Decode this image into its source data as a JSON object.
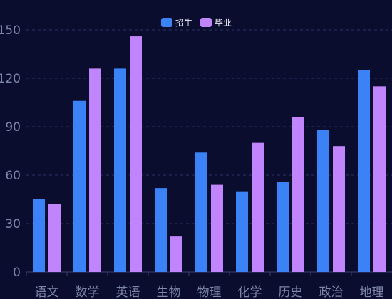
{
  "chart_data": {
    "type": "bar",
    "categories": [
      "语文",
      "数学",
      "英语",
      "生物",
      "物理",
      "化学",
      "历史",
      "政治",
      "地理"
    ],
    "series": [
      {
        "name": "招生",
        "values": [
          45,
          106,
          126,
          52,
          74,
          50,
          56,
          88,
          125
        ],
        "color": "#3b82f6"
      },
      {
        "name": "毕业",
        "values": [
          42,
          126,
          146,
          22,
          54,
          80,
          96,
          78,
          115
        ],
        "color": "#c084fc"
      }
    ],
    "title": "",
    "xlabel": "",
    "ylabel": "",
    "ylim": [
      0,
      150
    ],
    "yticks": [
      "0",
      "30",
      "60",
      "90",
      "120",
      "150"
    ],
    "grid": true,
    "legend_position": "top-center",
    "background": "#0b0d2f"
  }
}
